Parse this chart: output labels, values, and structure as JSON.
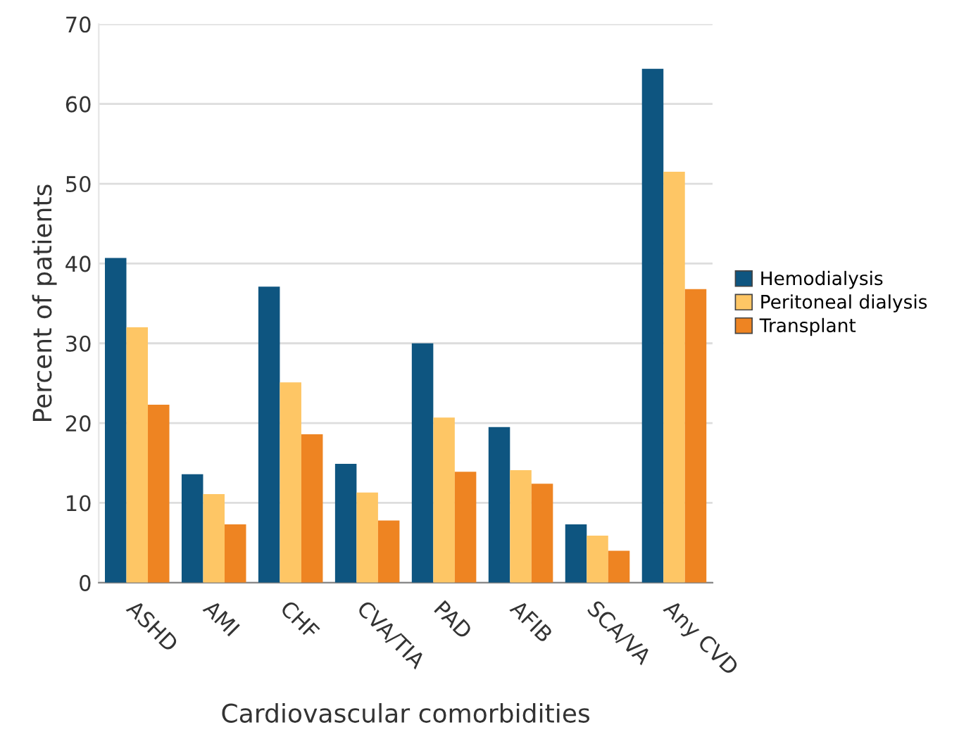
{
  "chart_data": {
    "type": "bar",
    "xlabel": "Cardiovascular comorbidities",
    "ylabel": "Percent of patients",
    "categories": [
      "ASHD",
      "AMI",
      "CHF",
      "CVA/TIA",
      "PAD",
      "AFIB",
      "SCA/VA",
      "Any CVD"
    ],
    "series": [
      {
        "name": "Hemodialysis",
        "color": "#0e5580",
        "values": [
          40.7,
          13.6,
          37.1,
          14.9,
          30.0,
          19.5,
          7.3,
          64.4
        ]
      },
      {
        "name": "Peritoneal dialysis",
        "color": "#fec665",
        "values": [
          32.0,
          11.1,
          25.1,
          11.3,
          20.7,
          14.1,
          5.9,
          51.5
        ]
      },
      {
        "name": "Transplant",
        "color": "#ee8422",
        "values": [
          22.3,
          7.3,
          18.6,
          7.8,
          13.9,
          12.4,
          4.0,
          36.8
        ]
      }
    ],
    "ylim": [
      0,
      70
    ],
    "yticks": [
      0,
      10,
      20,
      30,
      40,
      50,
      60,
      70
    ],
    "grid": "y",
    "legend": "right"
  }
}
